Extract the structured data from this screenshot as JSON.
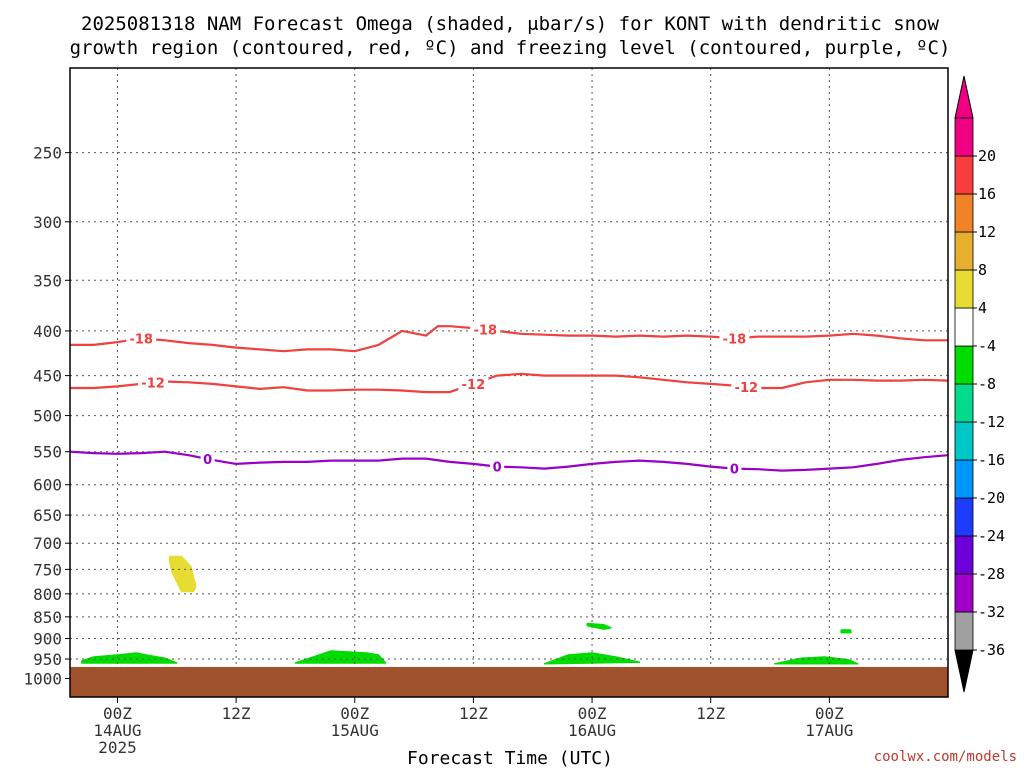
{
  "chart_data": {
    "type": "contour",
    "title_line1": "2025081318 NAM Forecast Omega (shaded, μbar/s) for KONT with dendritic snow",
    "title_line2": "growth region (contoured, red, ºC) and freezing level (contoured, purple, ºC)",
    "xlabel": "Forecast Time (UTC)",
    "credit": "coolwx.com/models",
    "xlim": [
      -0.2,
      3.5
    ],
    "x_ticks": [
      {
        "x": 0.0,
        "label": "00Z",
        "sub1": "14AUG",
        "sub2": "2025"
      },
      {
        "x": 0.5,
        "label": "12Z",
        "sub1": "",
        "sub2": ""
      },
      {
        "x": 1.0,
        "label": "00Z",
        "sub1": "15AUG",
        "sub2": ""
      },
      {
        "x": 1.5,
        "label": "12Z",
        "sub1": "",
        "sub2": ""
      },
      {
        "x": 2.0,
        "label": "00Z",
        "sub1": "16AUG",
        "sub2": ""
      },
      {
        "x": 2.5,
        "label": "12Z",
        "sub1": "",
        "sub2": ""
      },
      {
        "x": 3.0,
        "label": "00Z",
        "sub1": "17AUG",
        "sub2": ""
      }
    ],
    "y_levels": [
      250,
      300,
      350,
      400,
      450,
      500,
      550,
      600,
      650,
      700,
      750,
      800,
      850,
      900,
      950,
      1000
    ],
    "ylim": [
      1050,
      200
    ],
    "y_scale": "log-pressure",
    "grid": true,
    "surface": {
      "pressure": 970,
      "color": "#a0522d"
    },
    "colorbar": {
      "colors": [
        "#a0a0a0",
        "#a000c8",
        "#6e00dc",
        "#1e3cff",
        "#0096ff",
        "#00c8c8",
        "#00dc8c",
        "#00dc00",
        "#ffffff",
        "#e6dc32",
        "#e6af2d",
        "#f08228",
        "#fa3c3c",
        "#f00082"
      ],
      "boundaries": [
        "-36",
        "-32",
        "-28",
        "-24",
        "-20",
        "-16",
        "-12",
        "-8",
        "-4",
        "4",
        "8",
        "12",
        "16",
        "20"
      ],
      "under_color": "#000000",
      "over_color": "#f00082"
    },
    "contours": [
      {
        "level": -18,
        "label": "-18",
        "color": "#f04040",
        "x": [
          -0.2,
          -0.1,
          0.0,
          0.1,
          0.2,
          0.3,
          0.4,
          0.5,
          0.6,
          0.7,
          0.8,
          0.9,
          1.0,
          1.1,
          1.2,
          1.3,
          1.35,
          1.4,
          1.5,
          1.6,
          1.7,
          1.8,
          1.9,
          2.0,
          2.1,
          2.2,
          2.3,
          2.4,
          2.5,
          2.6,
          2.7,
          2.8,
          2.9,
          3.0,
          3.1,
          3.2,
          3.3,
          3.4,
          3.5
        ],
        "y": [
          415,
          415,
          412,
          408,
          410,
          413,
          415,
          418,
          420,
          422,
          420,
          420,
          422,
          415,
          400,
          405,
          395,
          395,
          397,
          400,
          403,
          404,
          405,
          405,
          406,
          405,
          406,
          405,
          406,
          408,
          406,
          406,
          406,
          405,
          403,
          405,
          408,
          410,
          410
        ],
        "label_x": [
          0.1,
          1.55,
          2.6
        ]
      },
      {
        "level": -12,
        "label": "-12",
        "color": "#f04040",
        "x": [
          -0.2,
          -0.1,
          0.0,
          0.1,
          0.2,
          0.3,
          0.4,
          0.5,
          0.6,
          0.7,
          0.8,
          0.9,
          1.0,
          1.1,
          1.2,
          1.3,
          1.4,
          1.5,
          1.6,
          1.7,
          1.8,
          1.9,
          2.0,
          2.1,
          2.2,
          2.3,
          2.4,
          2.5,
          2.6,
          2.7,
          2.8,
          2.9,
          3.0,
          3.1,
          3.2,
          3.3,
          3.4,
          3.5
        ],
        "y": [
          465,
          465,
          463,
          460,
          457,
          458,
          460,
          463,
          466,
          464,
          468,
          468,
          467,
          467,
          468,
          470,
          470,
          460,
          450,
          448,
          450,
          450,
          450,
          450,
          452,
          455,
          458,
          460,
          462,
          465,
          465,
          458,
          455,
          455,
          456,
          456,
          455,
          456
        ],
        "label_x": [
          0.15,
          1.5,
          2.65
        ]
      },
      {
        "level": 0,
        "label": "0",
        "color": "#9a00c8",
        "x": [
          -0.2,
          -0.1,
          0.0,
          0.1,
          0.2,
          0.3,
          0.4,
          0.5,
          0.6,
          0.7,
          0.8,
          0.9,
          1.0,
          1.1,
          1.2,
          1.3,
          1.4,
          1.5,
          1.6,
          1.7,
          1.8,
          1.9,
          2.0,
          2.1,
          2.2,
          2.3,
          2.4,
          2.5,
          2.6,
          2.7,
          2.8,
          2.9,
          3.0,
          3.1,
          3.2,
          3.3,
          3.4,
          3.5
        ],
        "y": [
          550,
          552,
          553,
          552,
          550,
          555,
          562,
          568,
          566,
          565,
          565,
          563,
          563,
          563,
          560,
          560,
          565,
          568,
          572,
          573,
          575,
          572,
          568,
          565,
          563,
          565,
          568,
          572,
          575,
          576,
          578,
          577,
          575,
          573,
          568,
          562,
          558,
          555
        ],
        "label_x": [
          0.38,
          1.6,
          2.6
        ]
      }
    ],
    "shaded_regions": [
      {
        "range": "4 to 8",
        "color": "#e6dc32",
        "x": [
          0.22,
          0.27,
          0.31,
          0.33,
          0.32,
          0.27,
          0.25,
          0.23,
          0.22
        ],
        "y": [
          725,
          725,
          745,
          785,
          795,
          795,
          775,
          755,
          735
        ]
      },
      {
        "range": "-8 to -4",
        "color": "#00dc00",
        "x": [
          -0.15,
          -0.1,
          0.0,
          0.08,
          0.12,
          0.2,
          0.25,
          -0.15
        ],
        "y": [
          955,
          945,
          940,
          935,
          940,
          948,
          960,
          960
        ]
      },
      {
        "range": "-8 to -4",
        "color": "#00dc00",
        "x": [
          0.75,
          0.85,
          0.9,
          1.05,
          1.1,
          1.13,
          0.75
        ],
        "y": [
          960,
          940,
          930,
          935,
          940,
          960,
          960
        ]
      },
      {
        "range": "-8 to -4",
        "color": "#00dc00",
        "x": [
          1.8,
          1.9,
          2.0,
          2.1,
          2.2,
          1.8
        ],
        "y": [
          962,
          940,
          935,
          945,
          958,
          962
        ]
      },
      {
        "range": "-8 to -4",
        "color": "#00dc00",
        "x": [
          1.98,
          2.05,
          2.08,
          2.05,
          1.98
        ],
        "y": [
          865,
          868,
          875,
          878,
          870
        ]
      },
      {
        "range": "-8 to -4",
        "color": "#00dc00",
        "x": [
          2.77,
          2.88,
          2.98,
          3.08,
          3.12,
          2.77
        ],
        "y": [
          962,
          948,
          945,
          952,
          962,
          962
        ]
      },
      {
        "range": "-8 to -4",
        "color": "#00dc00",
        "x": [
          3.05,
          3.09,
          3.09,
          3.05
        ],
        "y": [
          880,
          880,
          886,
          886
        ]
      }
    ]
  }
}
